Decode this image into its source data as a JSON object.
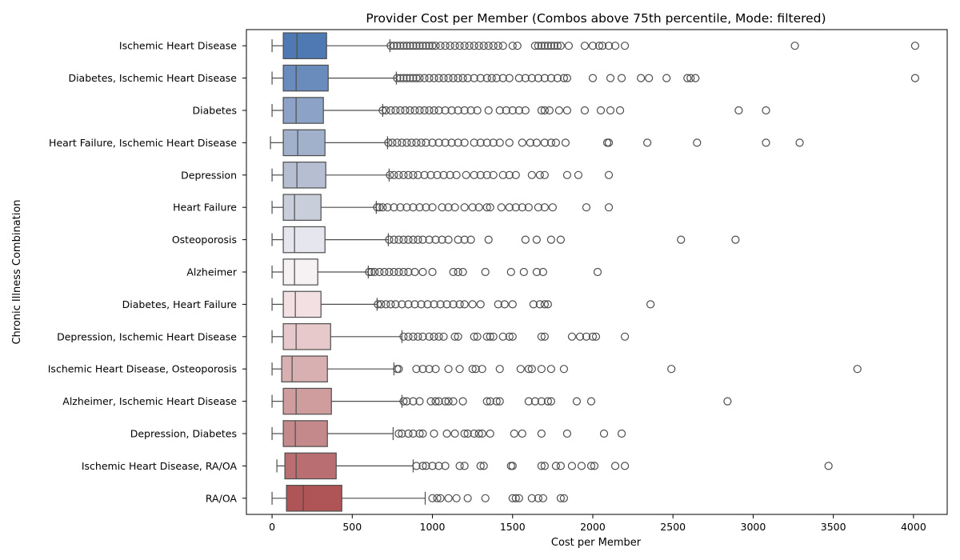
{
  "chart_data": {
    "type": "box",
    "title": "Provider Cost per Member (Combos above 75th percentile, Mode: filtered)",
    "xlabel": "Cost per Member",
    "ylabel": "Chronic Illness Combination",
    "xlim": [
      -160,
      4210
    ],
    "xticks": [
      0,
      500,
      1000,
      1500,
      2000,
      2500,
      3000,
      3500,
      4000
    ],
    "xtick_labels": [
      "0",
      "500",
      "1000",
      "1500",
      "2000",
      "2500",
      "3000",
      "3500",
      "4000"
    ],
    "grid": false,
    "orientation": "horizontal",
    "categories": [
      {
        "label": "Ischemic Heart Disease",
        "color": "#4e79b3",
        "whisker_low": 0,
        "q1": 70,
        "median": 155,
        "q3": 340,
        "whisker_high": 735,
        "outliers": [
          740,
          760,
          780,
          800,
          820,
          840,
          860,
          880,
          900,
          920,
          940,
          960,
          980,
          1000,
          1020,
          1050,
          1080,
          1110,
          1140,
          1170,
          1200,
          1230,
          1260,
          1290,
          1320,
          1350,
          1380,
          1410,
          1440,
          1500,
          1530,
          1640,
          1660,
          1680,
          1700,
          1720,
          1740,
          1760,
          1780,
          1800,
          1850,
          1950,
          2000,
          2040,
          2060,
          2100,
          2140,
          2200,
          3260,
          4010
        ]
      },
      {
        "label": "Diabetes, Ischemic Heart Disease",
        "color": "#6a8cbd",
        "whisker_low": 0,
        "q1": 70,
        "median": 150,
        "q3": 350,
        "whisker_high": 775,
        "outliers": [
          780,
          800,
          820,
          840,
          860,
          880,
          900,
          920,
          950,
          980,
          1010,
          1040,
          1070,
          1100,
          1130,
          1160,
          1190,
          1220,
          1260,
          1300,
          1340,
          1370,
          1400,
          1440,
          1480,
          1540,
          1580,
          1620,
          1660,
          1700,
          1740,
          1780,
          1820,
          1840,
          2000,
          2110,
          2180,
          2300,
          2350,
          2460,
          2590,
          2610,
          2640,
          4010
        ]
      },
      {
        "label": "Diabetes",
        "color": "#8da2c7",
        "whisker_low": 0,
        "q1": 70,
        "median": 150,
        "q3": 320,
        "whisker_high": 690,
        "outliers": [
          690,
          710,
          740,
          770,
          800,
          830,
          860,
          890,
          920,
          950,
          980,
          1010,
          1040,
          1080,
          1120,
          1160,
          1200,
          1240,
          1280,
          1350,
          1420,
          1460,
          1500,
          1540,
          1580,
          1680,
          1700,
          1730,
          1790,
          1840,
          1950,
          2050,
          2110,
          2170,
          2910,
          3080
        ]
      },
      {
        "label": "Heart Failure, Ischemic Heart Disease",
        "color": "#a1b1cc",
        "whisker_low": -10,
        "q1": 70,
        "median": 160,
        "q3": 330,
        "whisker_high": 720,
        "outliers": [
          725,
          750,
          780,
          810,
          840,
          870,
          900,
          930,
          960,
          1000,
          1040,
          1080,
          1120,
          1160,
          1200,
          1260,
          1300,
          1340,
          1380,
          1420,
          1480,
          1560,
          1610,
          1650,
          1700,
          1740,
          1770,
          1830,
          2090,
          2100,
          2340,
          2650,
          3080,
          3290
        ]
      },
      {
        "label": "Depression",
        "color": "#b5bfd1",
        "whisker_low": 0,
        "q1": 70,
        "median": 155,
        "q3": 335,
        "whisker_high": 730,
        "outliers": [
          735,
          760,
          790,
          820,
          850,
          880,
          910,
          950,
          990,
          1030,
          1070,
          1110,
          1150,
          1210,
          1260,
          1300,
          1340,
          1380,
          1440,
          1480,
          1520,
          1620,
          1670,
          1700,
          1840,
          1910,
          2100
        ]
      },
      {
        "label": "Heart Failure",
        "color": "#c9cedb",
        "whisker_low": 0,
        "q1": 70,
        "median": 140,
        "q3": 305,
        "whisker_high": 650,
        "outliers": [
          655,
          670,
          690,
          720,
          760,
          800,
          840,
          880,
          920,
          960,
          1000,
          1060,
          1100,
          1140,
          1200,
          1250,
          1290,
          1340,
          1360,
          1430,
          1480,
          1520,
          1560,
          1600,
          1660,
          1700,
          1750,
          1960,
          2100
        ]
      },
      {
        "label": "Osteoporosis",
        "color": "#e6e6ee",
        "whisker_low": 0,
        "q1": 70,
        "median": 140,
        "q3": 330,
        "whisker_high": 725,
        "outliers": [
          730,
          760,
          790,
          820,
          850,
          880,
          910,
          940,
          980,
          1020,
          1060,
          1100,
          1160,
          1200,
          1240,
          1350,
          1580,
          1650,
          1740,
          1800,
          2550,
          2890
        ]
      },
      {
        "label": "Alzheimer",
        "color": "#f6f1f2",
        "whisker_low": 0,
        "q1": 70,
        "median": 140,
        "q3": 285,
        "whisker_high": 600,
        "outliers": [
          605,
          620,
          640,
          670,
          700,
          730,
          760,
          790,
          820,
          850,
          890,
          940,
          1000,
          1130,
          1160,
          1190,
          1330,
          1490,
          1570,
          1650,
          1690,
          2030
        ]
      },
      {
        "label": "Diabetes, Heart Failure",
        "color": "#f3e0e2",
        "whisker_low": 0,
        "q1": 70,
        "median": 145,
        "q3": 305,
        "whisker_high": 655,
        "outliers": [
          660,
          680,
          710,
          740,
          770,
          810,
          850,
          890,
          930,
          970,
          1010,
          1050,
          1090,
          1130,
          1170,
          1200,
          1250,
          1300,
          1410,
          1450,
          1500,
          1630,
          1670,
          1700,
          1720,
          2360
        ]
      },
      {
        "label": "Depression, Ischemic Heart Disease",
        "color": "#e7c9cb",
        "whisker_low": 0,
        "q1": 70,
        "median": 150,
        "q3": 365,
        "whisker_high": 810,
        "outliers": [
          820,
          850,
          880,
          910,
          940,
          980,
          1010,
          1040,
          1070,
          1140,
          1160,
          1260,
          1280,
          1340,
          1360,
          1380,
          1440,
          1480,
          1500,
          1680,
          1700,
          1870,
          1920,
          1960,
          2000,
          2020,
          2200
        ]
      },
      {
        "label": "Ischemic Heart Disease, Osteoporosis",
        "color": "#d9b0b1",
        "whisker_low": 0,
        "q1": 60,
        "median": 125,
        "q3": 345,
        "whisker_high": 760,
        "outliers": [
          780,
          790,
          900,
          940,
          980,
          1020,
          1100,
          1170,
          1250,
          1270,
          1310,
          1420,
          1550,
          1600,
          1620,
          1680,
          1740,
          1820,
          2490,
          3650
        ]
      },
      {
        "label": "Alzheimer, Ischemic Heart Disease",
        "color": "#d09d9f",
        "whisker_low": 0,
        "q1": 70,
        "median": 150,
        "q3": 370,
        "whisker_high": 810,
        "outliers": [
          820,
          840,
          880,
          920,
          990,
          1020,
          1040,
          1080,
          1100,
          1130,
          1190,
          1340,
          1360,
          1400,
          1420,
          1600,
          1640,
          1680,
          1720,
          1740,
          1900,
          1990,
          2840
        ]
      },
      {
        "label": "Depression, Diabetes",
        "color": "#c48a8b",
        "whisker_low": 0,
        "q1": 70,
        "median": 145,
        "q3": 345,
        "whisker_high": 755,
        "outliers": [
          790,
          810,
          850,
          880,
          920,
          940,
          1010,
          1090,
          1140,
          1200,
          1220,
          1260,
          1290,
          1310,
          1360,
          1510,
          1560,
          1680,
          1840,
          2070,
          2180
        ]
      },
      {
        "label": "Ischemic Heart Disease, RA/OA",
        "color": "#b96f71",
        "whisker_low": 30,
        "q1": 80,
        "median": 150,
        "q3": 400,
        "whisker_high": 880,
        "outliers": [
          900,
          940,
          960,
          1000,
          1040,
          1080,
          1170,
          1200,
          1300,
          1320,
          1490,
          1500,
          1680,
          1700,
          1770,
          1800,
          1870,
          1930,
          1990,
          2010,
          2140,
          2200,
          3470
        ]
      },
      {
        "label": "RA/OA",
        "color": "#af5457",
        "whisker_low": 0,
        "q1": 90,
        "median": 195,
        "q3": 435,
        "whisker_high": 955,
        "outliers": [
          1000,
          1030,
          1050,
          1100,
          1150,
          1220,
          1330,
          1500,
          1520,
          1540,
          1620,
          1660,
          1690,
          1800,
          1820
        ]
      }
    ]
  }
}
